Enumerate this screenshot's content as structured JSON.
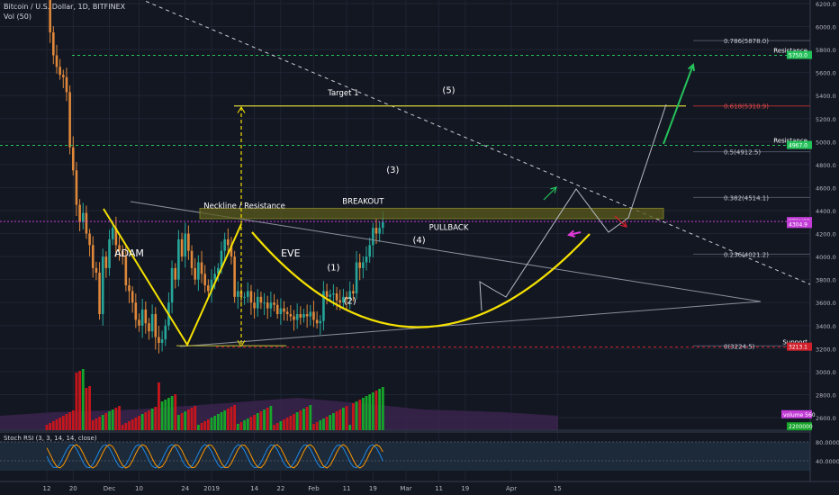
{
  "header": {
    "symbol": "Bitcoin / U.S. Dollar, 1D, BITFINEX",
    "volume": "Vol (50)"
  },
  "indicator": {
    "label": "Stoch RSI (3, 3, 14, 14, close)"
  },
  "colors": {
    "background": "#131722",
    "bull": "#26a69a",
    "bear": "#e0883a",
    "yellow": "#f5e100",
    "vol_up": "#16a52a",
    "vol_down": "#c6161b",
    "green_line": "#25c25b",
    "red_line": "#d0202c",
    "stoch_k": "#1e88e5",
    "stoch_d": "#ff9800"
  },
  "chart_data": {
    "type": "candlestick",
    "symbol": "BTCUSD",
    "timeframe": "1D",
    "exchange": "BITFINEX",
    "price_axis": {
      "ylim": [
        2450,
        6250
      ],
      "ticks": [
        6200,
        6000,
        5800,
        5600,
        5400,
        5200,
        5000,
        4800,
        4600,
        4400,
        4200,
        4000,
        3800,
        3600,
        3400,
        3200,
        3000,
        2800,
        2600
      ]
    },
    "time_axis": {
      "start_label": "12",
      "ticks": [
        {
          "label": "12",
          "day": 0
        },
        {
          "label": "20",
          "day": 8
        },
        {
          "label": "Dec",
          "day": 19
        },
        {
          "label": "10",
          "day": 28
        },
        {
          "label": "24",
          "day": 42
        },
        {
          "label": "2019",
          "day": 50
        },
        {
          "label": "14",
          "day": 63
        },
        {
          "label": "22",
          "day": 71
        },
        {
          "label": "Feb",
          "day": 81
        },
        {
          "label": "11",
          "day": 91
        },
        {
          "label": "19",
          "day": 99
        },
        {
          "label": "Mar",
          "day": 109
        },
        {
          "label": "11",
          "day": 119
        },
        {
          "label": "19",
          "day": 127
        },
        {
          "label": "Apr",
          "day": 141
        },
        {
          "label": "15",
          "day": 155
        }
      ]
    },
    "closes": [
      6300,
      5950,
      5750,
      5650,
      5580,
      5560,
      5430,
      4950,
      4750,
      4450,
      4300,
      4380,
      4200,
      4100,
      3900,
      3860,
      3500,
      4000,
      3900,
      4150,
      4250,
      4100,
      4050,
      4000,
      3750,
      3700,
      3600,
      3450,
      3400,
      3540,
      3420,
      3350,
      3500,
      3300,
      3250,
      3280,
      3400,
      3600,
      3900,
      3800,
      4150,
      4000,
      4200,
      4050,
      3900,
      3800,
      3950,
      3850,
      3750,
      3700,
      3800,
      3850,
      3900,
      4050,
      4150,
      4100,
      4000,
      3650,
      3700,
      3650,
      3650,
      3700,
      3600,
      3550,
      3650,
      3600,
      3600,
      3550,
      3600,
      3580,
      3500,
      3550,
      3520,
      3500,
      3480,
      3450,
      3500,
      3470,
      3500,
      3480,
      3520,
      3450,
      3420,
      3440,
      3700,
      3650,
      3670,
      3680,
      3620,
      3600,
      3650,
      3630,
      3700,
      3680,
      3950,
      3900,
      3950,
      4000,
      4100,
      4250,
      4200,
      4250,
      4300
    ],
    "stoch_axis": {
      "ticks": [
        80,
        40
      ]
    },
    "price_labels": [
      {
        "text": "5750.0",
        "price": 5750
      },
      {
        "text": "4967.0",
        "price": 4967
      },
      {
        "text": "BTCUSD",
        "price": 4305
      },
      {
        "text": "4304.9",
        "price": 4280
      },
      {
        "text": "3213.1",
        "price": 3213
      },
      {
        "text": "volume 560",
        "price": 2625
      },
      {
        "text": "2200000",
        "price": 2520
      }
    ],
    "fibonacci": [
      {
        "label": "0.786(5878.0)",
        "price": 5878
      },
      {
        "label": "0.618(5310.9)",
        "price": 5310
      },
      {
        "label": "0.5(4912.5)",
        "price": 4912
      },
      {
        "label": "0.382(4514.1)",
        "price": 4514
      },
      {
        "label": "0.236(4021.2)",
        "price": 4021
      },
      {
        "label": "0(3224.5)",
        "price": 3224
      }
    ],
    "levels": [
      {
        "label": "Resistance",
        "price": 5750
      },
      {
        "label": "Resistance",
        "price": 4967
      },
      {
        "label": "Support",
        "price": 3213
      }
    ],
    "annotations": [
      {
        "text": "Target 1",
        "price": 5400,
        "day": 90
      },
      {
        "text": "Neckline / Resistance",
        "price": 4420,
        "day": 60
      },
      {
        "text": "ADAM",
        "price": 4000,
        "day": 25
      },
      {
        "text": "EVE",
        "price": 4000,
        "day": 74
      },
      {
        "text": "BREAKOUT",
        "price": 4460,
        "day": 96
      },
      {
        "text": "PULLBACK",
        "price": 4230,
        "day": 122
      },
      {
        "text": "(1)",
        "price": 3880,
        "day": 87
      },
      {
        "text": "(2)",
        "price": 3590,
        "day": 92
      },
      {
        "text": "(3)",
        "price": 4730,
        "day": 105
      },
      {
        "text": "(4)",
        "price": 4120,
        "day": 113
      },
      {
        "text": "(5)",
        "price": 5420,
        "day": 122
      }
    ]
  }
}
